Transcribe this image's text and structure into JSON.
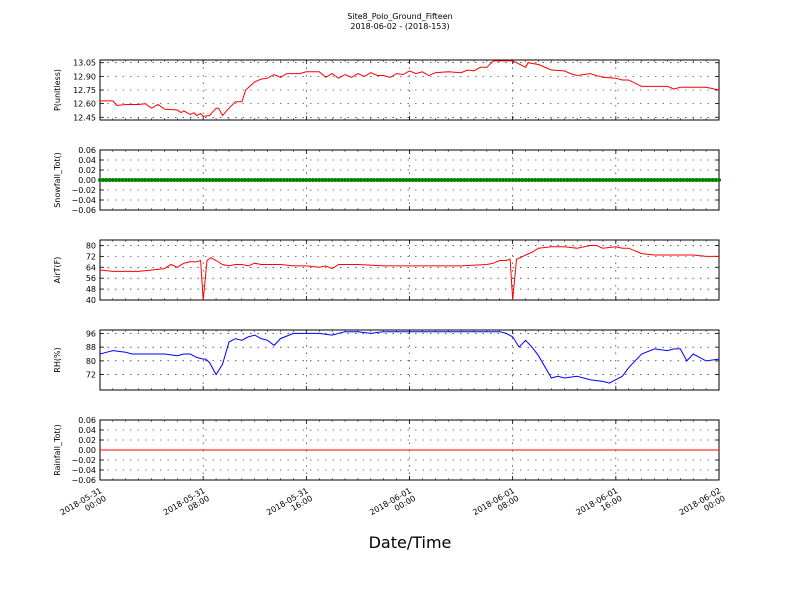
{
  "figure": {
    "title": "Site8_Polo_Ground_Fifteen",
    "subtitle": "2018-06-02 - (2018-153)",
    "xlabel": "Date/Time",
    "x_ticks": [
      {
        "hours": 0,
        "label": [
          "2018-05-31",
          "00:00"
        ]
      },
      {
        "hours": 8,
        "label": [
          "2018-05-31",
          "08:00"
        ]
      },
      {
        "hours": 16,
        "label": [
          "2018-05-31",
          "16:00"
        ]
      },
      {
        "hours": 24,
        "label": [
          "2018-06-01",
          "00:00"
        ]
      },
      {
        "hours": 32,
        "label": [
          "2018-06-01",
          "08:00"
        ]
      },
      {
        "hours": 40,
        "label": [
          "2018-06-01",
          "16:00"
        ]
      },
      {
        "hours": 48,
        "label": [
          "2018-06-02",
          "00:00"
        ]
      }
    ]
  },
  "chart_data": [
    {
      "type": "line",
      "ylabel": "P(unitless)",
      "ylim": [
        12.42,
        13.08
      ],
      "yticks": [
        12.45,
        12.6,
        12.75,
        12.9,
        13.05
      ],
      "ytick_labels": [
        "12.45",
        "12.60",
        "12.75",
        "12.90",
        "13.05"
      ],
      "color": "#ff0000",
      "grid": true,
      "x_hours": [
        0,
        1,
        1.3,
        2,
        3,
        3.5,
        4,
        4.5,
        5,
        6,
        6.3,
        6.5,
        7,
        7.3,
        7.5,
        7.8,
        8,
        8.5,
        9,
        9.2,
        9.5,
        10,
        10.5,
        11,
        11.3,
        12,
        12.5,
        13,
        13.5,
        14,
        14.5,
        15,
        15.5,
        16,
        17,
        17.5,
        18,
        18.5,
        19,
        19.5,
        20,
        20.5,
        21,
        21.5,
        22,
        22.5,
        23,
        23.5,
        24,
        24.5,
        25,
        25.5,
        26,
        27,
        28,
        28.5,
        29,
        29.5,
        30,
        30.5,
        31,
        32,
        32.3,
        33,
        33.2,
        34,
        35,
        36,
        36.5,
        37,
        38,
        39,
        40,
        40.5,
        41,
        42,
        43,
        44,
        44.5,
        45,
        46,
        47,
        48
      ],
      "values": [
        12.63,
        12.63,
        12.58,
        12.59,
        12.59,
        12.6,
        12.55,
        12.59,
        12.54,
        12.53,
        12.5,
        12.52,
        12.48,
        12.5,
        12.47,
        12.49,
        12.46,
        12.47,
        12.55,
        12.55,
        12.47,
        12.55,
        12.62,
        12.62,
        12.75,
        12.84,
        12.87,
        12.88,
        12.92,
        12.89,
        12.93,
        12.93,
        12.93,
        12.95,
        12.95,
        12.89,
        12.93,
        12.88,
        12.92,
        12.89,
        12.93,
        12.9,
        12.94,
        12.91,
        12.91,
        12.89,
        12.93,
        12.92,
        12.96,
        12.93,
        12.95,
        12.91,
        12.94,
        12.95,
        12.94,
        12.97,
        12.96,
        13.0,
        13.0,
        13.07,
        13.07,
        13.07,
        13.05,
        13.0,
        13.05,
        13.03,
        12.97,
        12.96,
        12.93,
        12.91,
        12.93,
        12.89,
        12.88,
        12.86,
        12.86,
        12.79,
        12.79,
        12.79,
        12.76,
        12.78,
        12.78,
        12.78,
        12.75
      ]
    },
    {
      "type": "scatter",
      "ylabel": "Snowfall_Tot()",
      "ylim": [
        -0.06,
        0.06
      ],
      "yticks": [
        -0.06,
        -0.04,
        -0.02,
        0.0,
        0.02,
        0.04,
        0.06
      ],
      "ytick_labels": [
        "−0.06",
        "−0.04",
        "−0.02",
        "0.00",
        "0.02",
        "0.04",
        "0.06"
      ],
      "color": "#008000",
      "grid": true,
      "x_hours": [
        0,
        48
      ],
      "values": [
        0.0,
        0.0
      ]
    },
    {
      "type": "line",
      "ylabel": "AirT(F)",
      "ylim": [
        40,
        84
      ],
      "yticks": [
        40,
        48,
        56,
        64,
        72,
        80
      ],
      "ytick_labels": [
        "40",
        "48",
        "56",
        "64",
        "72",
        "80"
      ],
      "color": "#ff0000",
      "grid": true,
      "x_hours": [
        0,
        1,
        2,
        3,
        4,
        5,
        5.5,
        6,
        6.5,
        7,
        7.5,
        7.8,
        8,
        8.3,
        8.6,
        9,
        9.5,
        10,
        10.5,
        11,
        11.5,
        12,
        12.5,
        13,
        14,
        15,
        16,
        17,
        17.5,
        18,
        18.5,
        19,
        20,
        22,
        24,
        26,
        28,
        30,
        30.5,
        31,
        31.5,
        31.8,
        32,
        32.3,
        32.6,
        33,
        33.5,
        34,
        35,
        36,
        37,
        38,
        38.5,
        39,
        40,
        40.5,
        41,
        42,
        43,
        44,
        45,
        46,
        47,
        48
      ],
      "values": [
        62,
        61,
        61,
        61,
        62,
        63,
        66,
        64,
        67,
        68,
        68,
        69,
        40,
        69,
        71,
        69,
        66,
        65,
        66,
        66,
        65,
        67,
        66,
        66,
        66,
        65,
        65,
        64,
        65,
        63,
        66,
        66,
        66,
        65,
        65,
        65,
        65,
        66,
        67,
        69,
        69,
        70,
        40,
        70,
        71,
        73,
        75,
        78,
        79,
        79,
        78,
        80,
        80,
        78,
        79,
        78,
        78,
        74,
        73,
        73,
        73,
        73,
        72,
        72
      ]
    },
    {
      "type": "line",
      "ylabel": "RH(%)",
      "ylim": [
        63,
        98
      ],
      "yticks": [
        72,
        80,
        88,
        96
      ],
      "ytick_labels": [
        "72",
        "80",
        "88",
        "96"
      ],
      "color": "#0000ff",
      "grid": true,
      "x_hours": [
        0,
        0.5,
        1,
        2,
        2.5,
        3,
        4,
        5,
        6,
        6.5,
        7,
        7.5,
        8,
        8.2,
        8.5,
        9,
        9.5,
        10,
        10.5,
        11,
        11.5,
        12,
        12.5,
        13,
        13.5,
        14,
        15,
        16,
        17,
        18,
        19,
        20,
        21,
        22,
        23,
        24,
        25,
        26,
        27,
        28,
        29,
        30,
        31,
        31.5,
        32,
        32.5,
        33,
        33.5,
        34,
        35,
        35.5,
        36,
        37,
        38,
        39,
        39.5,
        40,
        40.5,
        41,
        42,
        43,
        44,
        44.5,
        45,
        45.5,
        46,
        47,
        48
      ],
      "values": [
        84,
        85,
        86,
        85,
        84,
        84,
        84,
        84,
        83,
        84,
        84,
        82,
        81,
        81,
        79,
        72,
        78,
        91,
        93,
        92,
        94,
        95,
        93,
        92,
        89,
        93,
        96,
        96,
        96,
        95,
        97,
        97,
        96,
        97,
        97,
        97,
        97,
        97,
        97,
        97,
        97,
        97,
        97,
        96,
        94,
        88,
        92,
        88,
        83,
        70,
        71,
        70,
        71,
        69,
        68,
        67,
        69,
        71,
        76,
        84,
        87,
        86,
        87,
        87,
        80,
        84,
        80,
        81
      ]
    },
    {
      "type": "line",
      "ylabel": "Rainfall_Tot()",
      "ylim": [
        -0.06,
        0.06
      ],
      "yticks": [
        -0.06,
        -0.04,
        -0.02,
        0.0,
        0.02,
        0.04,
        0.06
      ],
      "ytick_labels": [
        "−0.06",
        "−0.04",
        "−0.02",
        "0.00",
        "0.02",
        "0.04",
        "0.06"
      ],
      "color": "#ff0000",
      "grid": true,
      "x_hours": [
        0,
        48
      ],
      "values": [
        0.0,
        0.0
      ]
    }
  ]
}
